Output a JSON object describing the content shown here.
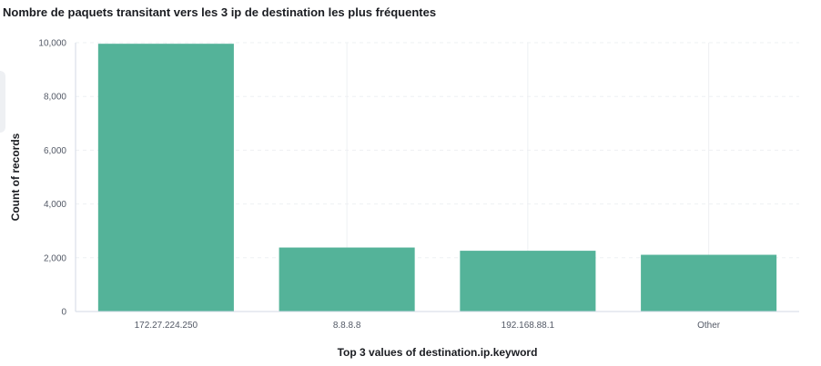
{
  "chart_data": {
    "type": "bar",
    "title": "Nombre de paquets transitant vers les 3 ip de destination les plus fréquentes",
    "xlabel": "Top 3 values of destination.ip.keyword",
    "ylabel": "Count of records",
    "categories": [
      "172.27.224.250",
      "8.8.8.8",
      "192.168.88.1",
      "Other"
    ],
    "values": [
      9960,
      2380,
      2260,
      2110
    ],
    "ylim": [
      0,
      10000
    ],
    "yticks": [
      0,
      2000,
      4000,
      6000,
      8000,
      10000
    ],
    "ytick_labels": [
      "0",
      "2,000",
      "4,000",
      "6,000",
      "8,000",
      "10,000"
    ],
    "grid": true,
    "legend": false,
    "bar_color": "#54b399",
    "grid_color": "#eef0f3"
  }
}
